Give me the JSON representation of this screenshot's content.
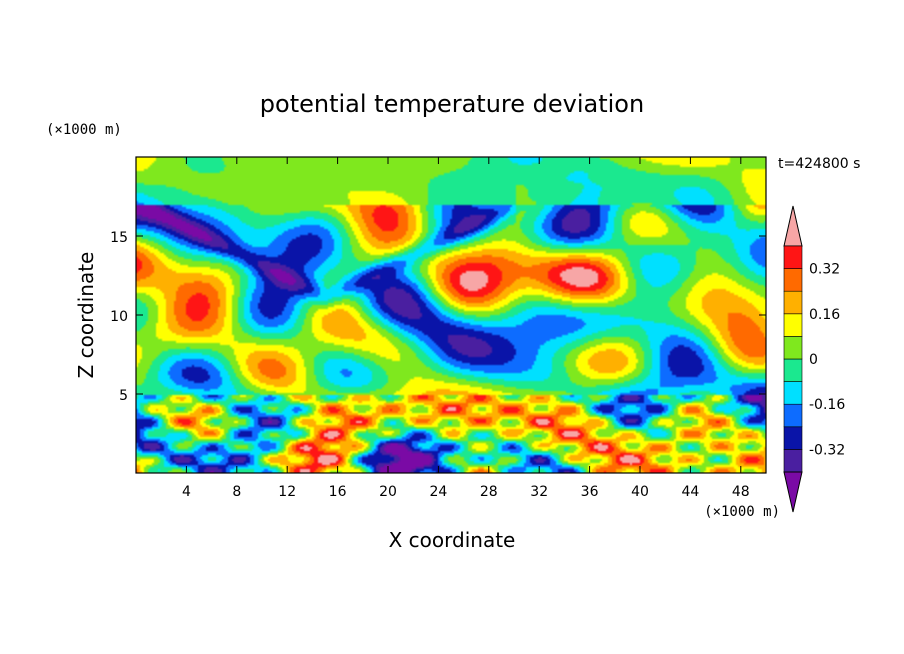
{
  "chart_data": {
    "type": "heatmap",
    "title": "potential temperature deviation",
    "xlabel": "X coordinate",
    "ylabel": "Z coordinate",
    "x_unit": "(×1000 m)",
    "y_unit": "(×1000 m)",
    "time_label": "t=424800 s",
    "xlim": [
      0,
      50
    ],
    "ylim": [
      0,
      20
    ],
    "x_ticks": [
      4,
      8,
      12,
      16,
      20,
      24,
      28,
      32,
      36,
      40,
      44,
      48
    ],
    "y_ticks": [
      5,
      10,
      15
    ],
    "colorbar": {
      "levels": [
        -0.4,
        -0.32,
        -0.24,
        -0.16,
        -0.08,
        0,
        0.08,
        0.16,
        0.24,
        0.32,
        0.4
      ],
      "labels": [
        "0.32",
        "0.16",
        "0",
        "-0.16",
        "-0.32"
      ],
      "label_values": [
        0.32,
        0.16,
        0,
        -0.16,
        -0.32
      ],
      "colors": [
        "#7a0aa5",
        "#4a1fa0",
        "#0a14a8",
        "#0d6cff",
        "#00e0ff",
        "#1be88f",
        "#7fe81e",
        "#ffff00",
        "#ffb000",
        "#ff6a00",
        "#ff1515",
        "#f7a6a6"
      ],
      "extend": "both"
    },
    "legend_position": "right",
    "grid": false
  }
}
